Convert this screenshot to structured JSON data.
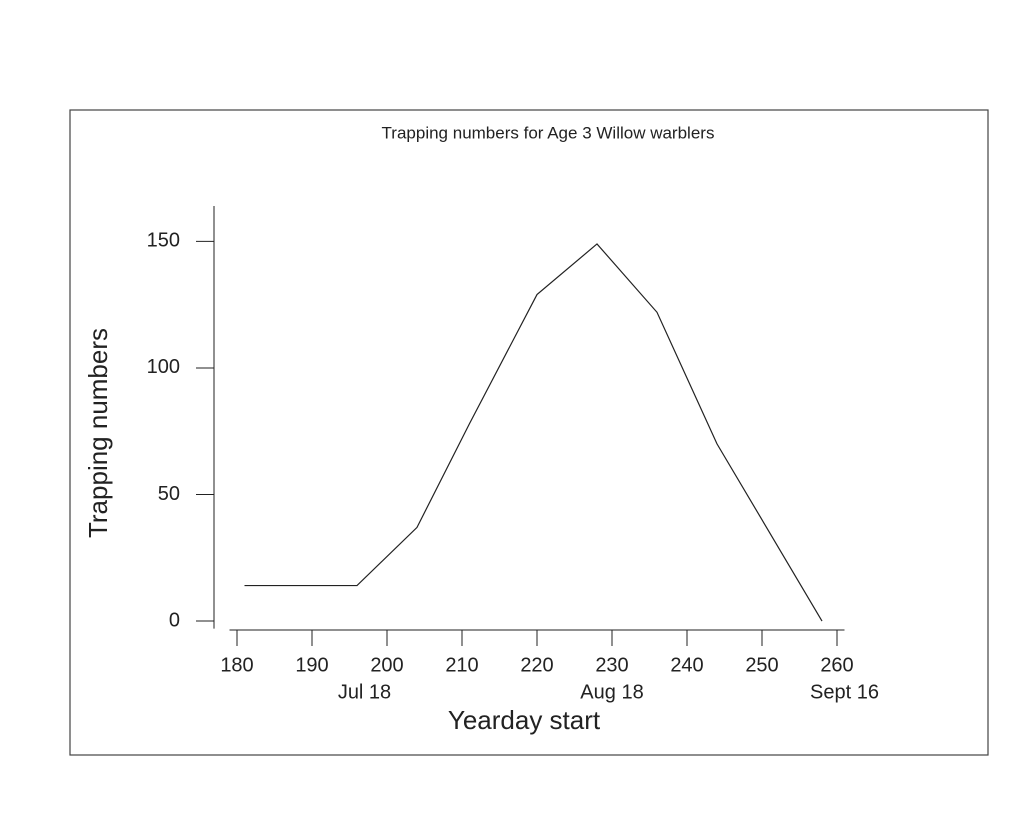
{
  "chart_data": {
    "type": "line",
    "title": "Trapping numbers for Age 3 Willow warblers",
    "x_label": "Yearday start",
    "y_label": "Trapping numbers",
    "x": [
      181,
      196,
      204,
      211,
      220,
      228,
      236,
      244,
      258
    ],
    "values": [
      14,
      14,
      37,
      78,
      129,
      149,
      122,
      70,
      0
    ],
    "color": "#222222",
    "xlim": [
      179,
      261
    ],
    "ylim": [
      -3,
      164
    ],
    "xticks": [
      180,
      190,
      200,
      210,
      220,
      230,
      240,
      250,
      260
    ],
    "yticks": [
      0,
      50,
      100,
      150
    ],
    "date_labels": [
      {
        "value": 197,
        "label": "Jul 18"
      },
      {
        "value": 230,
        "label": "Aug 18"
      },
      {
        "value": 261,
        "label": "Sept 16"
      }
    ],
    "grid": false
  }
}
